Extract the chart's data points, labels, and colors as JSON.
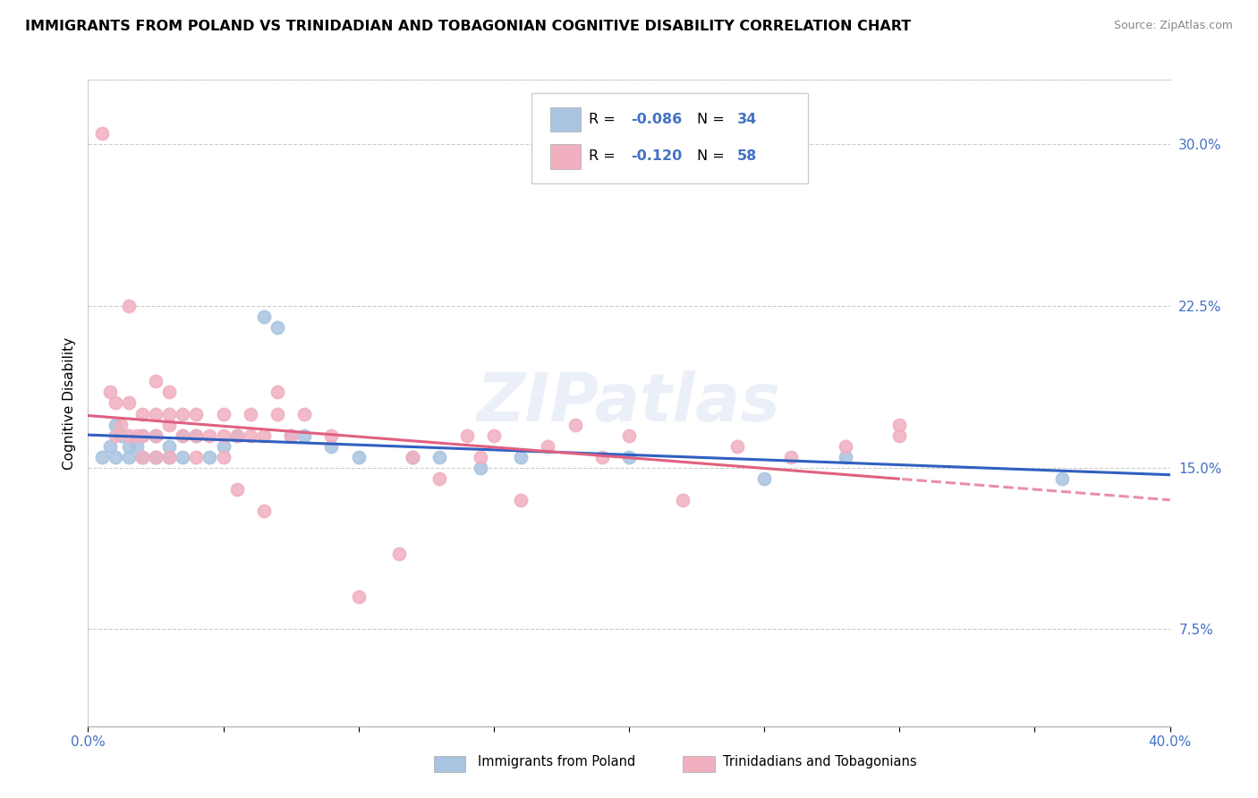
{
  "title": "IMMIGRANTS FROM POLAND VS TRINIDADIAN AND TOBAGONIAN COGNITIVE DISABILITY CORRELATION CHART",
  "source": "Source: ZipAtlas.com",
  "ylabel": "Cognitive Disability",
  "right_yticks": [
    "30.0%",
    "22.5%",
    "15.0%",
    "7.5%"
  ],
  "right_ytick_vals": [
    0.3,
    0.225,
    0.15,
    0.075
  ],
  "xlim": [
    0.0,
    0.4
  ],
  "ylim": [
    0.03,
    0.33
  ],
  "legend_blue": {
    "label": "Immigrants from Poland",
    "R": "-0.086",
    "N": "34"
  },
  "legend_pink": {
    "label": "Trinidadians and Tobagonians",
    "R": "-0.120",
    "N": "58"
  },
  "blue_color": "#a8c4e0",
  "pink_color": "#f0b0c0",
  "blue_line_color": "#3060c0",
  "pink_line_color": "#e06080",
  "watermark": "ZIPatlas",
  "blue_scatter_x": [
    0.005,
    0.008,
    0.01,
    0.01,
    0.012,
    0.015,
    0.015,
    0.018,
    0.02,
    0.02,
    0.025,
    0.025,
    0.03,
    0.03,
    0.035,
    0.035,
    0.04,
    0.045,
    0.05,
    0.055,
    0.065,
    0.07,
    0.075,
    0.08,
    0.09,
    0.1,
    0.12,
    0.13,
    0.145,
    0.16,
    0.2,
    0.25,
    0.28,
    0.36
  ],
  "blue_scatter_y": [
    0.155,
    0.16,
    0.155,
    0.17,
    0.165,
    0.155,
    0.16,
    0.16,
    0.155,
    0.165,
    0.155,
    0.165,
    0.155,
    0.16,
    0.155,
    0.165,
    0.165,
    0.155,
    0.16,
    0.165,
    0.22,
    0.215,
    0.165,
    0.165,
    0.16,
    0.155,
    0.155,
    0.155,
    0.15,
    0.155,
    0.155,
    0.145,
    0.155,
    0.145
  ],
  "pink_scatter_x": [
    0.005,
    0.008,
    0.01,
    0.01,
    0.012,
    0.015,
    0.015,
    0.015,
    0.018,
    0.02,
    0.02,
    0.025,
    0.025,
    0.025,
    0.03,
    0.03,
    0.03,
    0.035,
    0.035,
    0.04,
    0.04,
    0.045,
    0.05,
    0.05,
    0.055,
    0.06,
    0.06,
    0.065,
    0.07,
    0.075,
    0.08,
    0.09,
    0.1,
    0.115,
    0.12,
    0.13,
    0.14,
    0.145,
    0.15,
    0.16,
    0.17,
    0.18,
    0.19,
    0.2,
    0.22,
    0.24,
    0.26,
    0.28,
    0.3,
    0.02,
    0.025,
    0.03,
    0.04,
    0.05,
    0.055,
    0.065,
    0.07,
    0.3
  ],
  "pink_scatter_y": [
    0.305,
    0.185,
    0.165,
    0.18,
    0.17,
    0.165,
    0.18,
    0.225,
    0.165,
    0.165,
    0.175,
    0.165,
    0.175,
    0.19,
    0.17,
    0.175,
    0.185,
    0.165,
    0.175,
    0.165,
    0.175,
    0.165,
    0.165,
    0.175,
    0.165,
    0.165,
    0.175,
    0.165,
    0.175,
    0.165,
    0.175,
    0.165,
    0.09,
    0.11,
    0.155,
    0.145,
    0.165,
    0.155,
    0.165,
    0.135,
    0.16,
    0.17,
    0.155,
    0.165,
    0.135,
    0.16,
    0.155,
    0.16,
    0.17,
    0.155,
    0.155,
    0.155,
    0.155,
    0.155,
    0.14,
    0.13,
    0.185,
    0.165
  ]
}
